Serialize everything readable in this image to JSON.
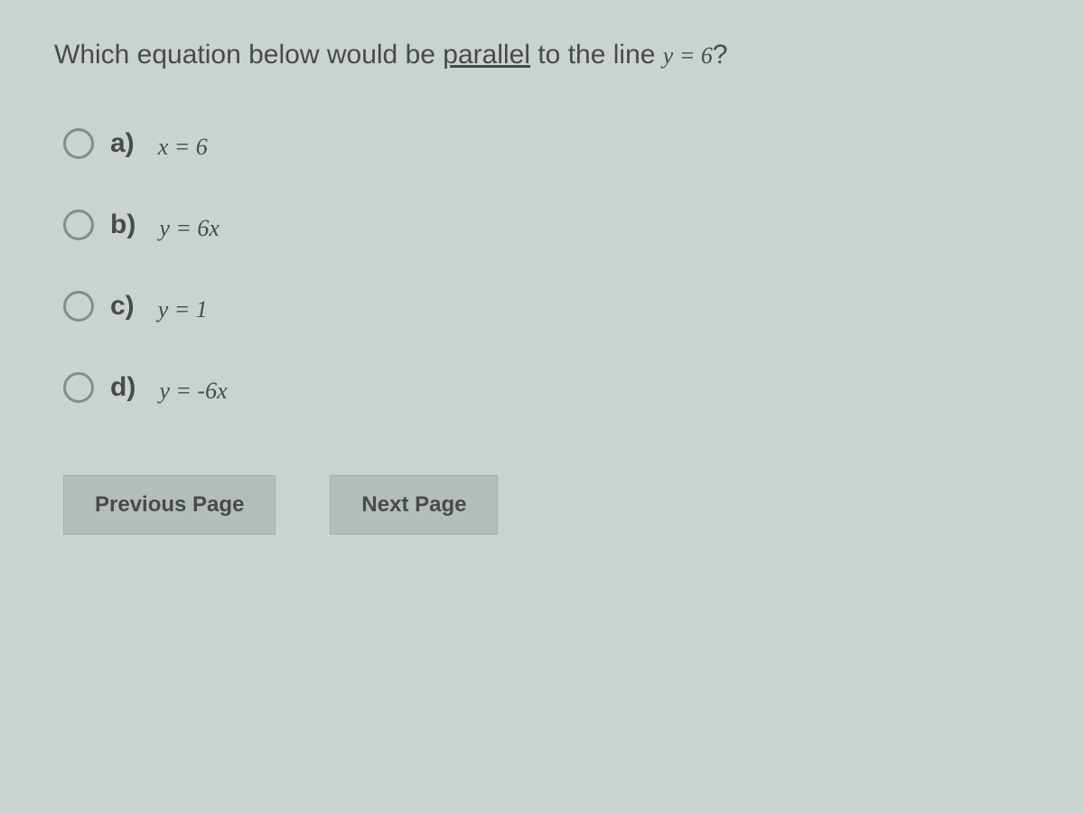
{
  "question": {
    "prefix": "Which equation below would be ",
    "underlined": "parallel",
    "middle": " to the line ",
    "equation": "y = 6",
    "suffix": "?"
  },
  "options": [
    {
      "label": "a)",
      "equation": "x = 6"
    },
    {
      "label": "b)",
      "equation": "y = 6x"
    },
    {
      "label": "c)",
      "equation": "y = 1"
    },
    {
      "label": "d)",
      "equation": "y = -6x"
    }
  ],
  "buttons": {
    "previous": "Previous Page",
    "next": "Next Page"
  },
  "colors": {
    "background": "#c9d4d0",
    "text": "#4a4a4a",
    "radio_border": "#8a8a8a",
    "button_bg": "#b3bebb",
    "button_border": "#a5afac"
  },
  "typography": {
    "question_fontsize": 30,
    "option_label_fontsize": 30,
    "option_equation_fontsize": 26,
    "button_fontsize": 24
  }
}
